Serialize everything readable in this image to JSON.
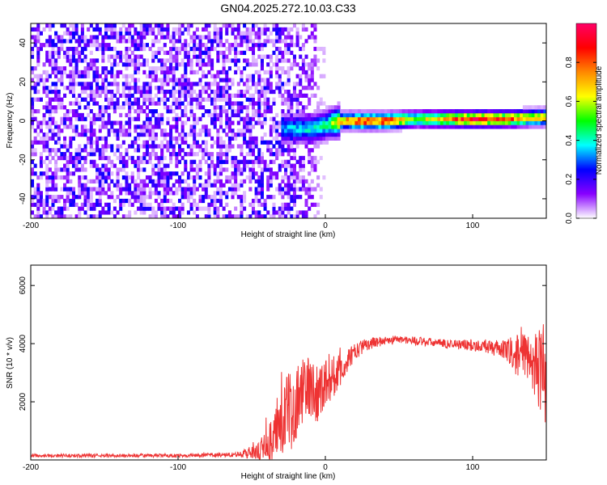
{
  "page": {
    "title": "GN04.2025.272.10.03.C33"
  },
  "chart_data": [
    {
      "type": "heatmap",
      "title": "GN04.2025.272.10.03.C33",
      "xlabel": "Height of straight line (km)",
      "ylabel": "Frequency (Hz)",
      "xlim": [
        -200,
        150
      ],
      "ylim": [
        -50,
        50
      ],
      "x_ticks": [
        "-200",
        "-100",
        "0",
        "100"
      ],
      "x_tick_values": [
        -200,
        -100,
        0,
        100
      ],
      "y_ticks": [
        "-40",
        "-20",
        "0",
        "20",
        "40"
      ],
      "y_tick_values": [
        -40,
        -20,
        0,
        20,
        40
      ],
      "grid": false,
      "colorbar": {
        "label": "Normalized spectral amplitude",
        "range": [
          0,
          1
        ],
        "ticks": [
          "0.0",
          "0.2",
          "0.4",
          "0.6",
          "0.8"
        ],
        "tick_values": [
          0.0,
          0.2,
          0.4,
          0.6,
          0.8
        ],
        "colors": [
          "#ffffff",
          "#8800ff",
          "#0000ff",
          "#00ffff",
          "#00ff00",
          "#ffff00",
          "#ff8800",
          "#ff0000",
          "#ff0066"
        ]
      },
      "noise_region": {
        "x_range": [
          -200,
          0
        ],
        "amplitude_range": [
          0.0,
          0.25
        ]
      },
      "signal_band": [
        {
          "x": -30,
          "freq": -4,
          "amplitude": 0.35
        },
        {
          "x": -10,
          "freq": -4,
          "amplitude": 0.4
        },
        {
          "x": 0,
          "freq": -2,
          "amplitude": 0.45
        },
        {
          "x": 10,
          "freq": 0,
          "amplitude": 0.75
        },
        {
          "x": 25,
          "freq": 0,
          "amplitude": 0.9
        },
        {
          "x": 40,
          "freq": 0,
          "amplitude": 0.9
        },
        {
          "x": 60,
          "freq": 1,
          "amplitude": 0.6
        },
        {
          "x": 80,
          "freq": 1,
          "amplitude": 0.75
        },
        {
          "x": 100,
          "freq": 1,
          "amplitude": 0.95
        },
        {
          "x": 120,
          "freq": 1,
          "amplitude": 0.85
        },
        {
          "x": 150,
          "freq": 2,
          "amplitude": 0.7
        }
      ]
    },
    {
      "type": "line",
      "xlabel": "Height of straight line (km)",
      "ylabel": "SNR (10 * v/v)",
      "xlim": [
        -200,
        150
      ],
      "ylim": [
        0,
        6700
      ],
      "x_ticks": [
        "-200",
        "-100",
        "0",
        "100"
      ],
      "x_tick_values": [
        -200,
        -100,
        0,
        100
      ],
      "y_ticks": [
        "2000",
        "4000",
        "6000"
      ],
      "y_tick_values": [
        2000,
        4000,
        6000
      ],
      "grid": false,
      "color": "#ee3333",
      "series": [
        {
          "x": [
            -200,
            -150,
            -100,
            -60,
            -45,
            -35,
            -30,
            -25,
            -20,
            -15,
            -10,
            -5,
            0,
            5,
            10,
            15,
            20,
            25,
            30,
            40,
            50,
            60,
            80,
            100,
            110,
            120,
            125,
            130,
            135,
            140,
            145,
            150
          ],
          "values": [
            150,
            150,
            150,
            180,
            300,
            700,
            1300,
            1700,
            2000,
            2400,
            2500,
            2300,
            2700,
            2900,
            3000,
            3400,
            3700,
            3900,
            4000,
            4100,
            4150,
            4100,
            4000,
            3950,
            3900,
            3800,
            3700,
            3600,
            3500,
            3400,
            3200,
            3000
          ],
          "noise_amplitude": [
            60,
            60,
            60,
            80,
            300,
            900,
            1200,
            1300,
            1300,
            1200,
            1100,
            1000,
            900,
            800,
            600,
            400,
            300,
            250,
            200,
            150,
            150,
            150,
            150,
            200,
            250,
            300,
            500,
            700,
            900,
            1100,
            1400,
            1800
          ]
        }
      ]
    }
  ]
}
